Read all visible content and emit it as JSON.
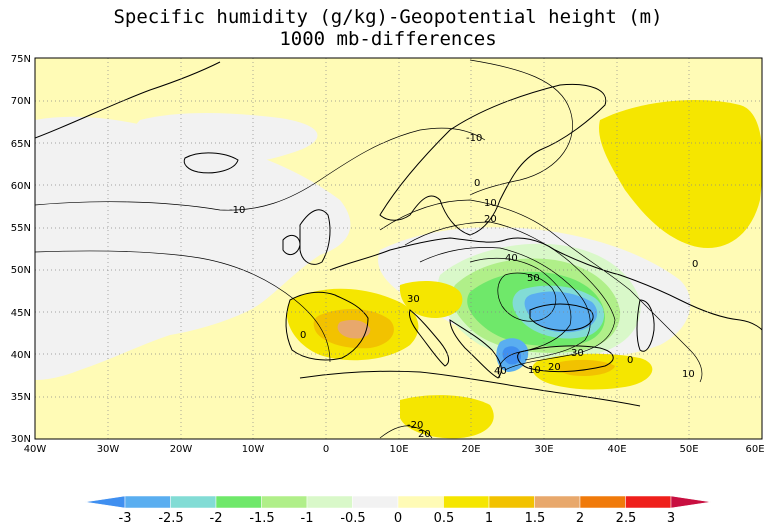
{
  "title": {
    "line1": "Specific humidity (g/kg)-Geopotential height (m)",
    "line2": "1000 mb-differences"
  },
  "map": {
    "lon_range": [
      -40,
      60
    ],
    "lat_range": [
      30,
      75
    ],
    "x_ticks": [
      "40W",
      "30W",
      "20W",
      "10W",
      "0",
      "10E",
      "20E",
      "30E",
      "40E",
      "50E",
      "60E"
    ],
    "y_ticks": [
      "30N",
      "35N",
      "40N",
      "45N",
      "50N",
      "55N",
      "60N",
      "65N",
      "70N",
      "75N"
    ],
    "gridlines": "dotted",
    "contour_labels": [
      "-10",
      "-10",
      "0",
      "10",
      "20",
      "40",
      "50",
      "30",
      "0",
      "30",
      "20",
      "10",
      "0",
      "10",
      "40",
      "-20",
      "20",
      "0"
    ]
  },
  "colorbar": {
    "labels": [
      "-3",
      "-2.5",
      "-2",
      "-1.5",
      "-1",
      "-0.5",
      "0",
      "0.5",
      "1",
      "1.5",
      "2",
      "2.5",
      "3"
    ],
    "colors": [
      "#3f8ff0",
      "#5aaef0",
      "#82dcd5",
      "#6fe86a",
      "#b0ef89",
      "#d9f8c9",
      "#f2f2f2",
      "#fffbb6",
      "#f5e600",
      "#f2c200",
      "#e8a86c",
      "#f07a0a",
      "#ef1f1b",
      "#c80f40"
    ]
  },
  "colors": {
    "background_field": "#fffbb6",
    "coast": "#000000",
    "contour": "#000000"
  }
}
